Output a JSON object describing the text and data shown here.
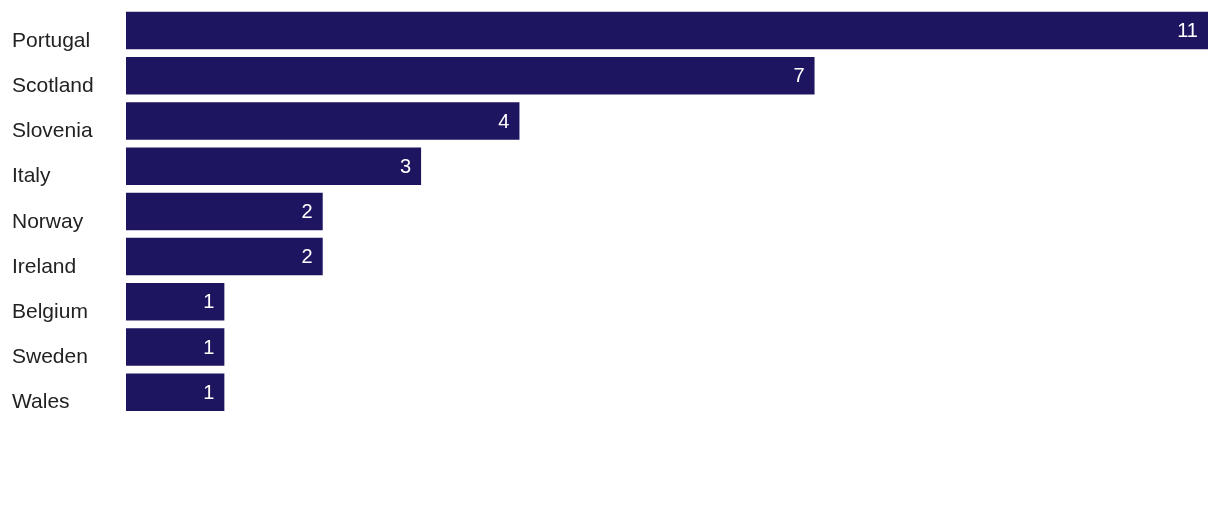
{
  "chart_data": {
    "type": "bar",
    "orientation": "horizontal",
    "categories": [
      "Portugal",
      "Scotland",
      "Slovenia",
      "Italy",
      "Norway",
      "Ireland",
      "Belgium",
      "Sweden",
      "Wales"
    ],
    "values": [
      11,
      7,
      4,
      3,
      2,
      2,
      1,
      1,
      1
    ],
    "color": "#1e1560",
    "data_labels": true,
    "legend": false
  }
}
